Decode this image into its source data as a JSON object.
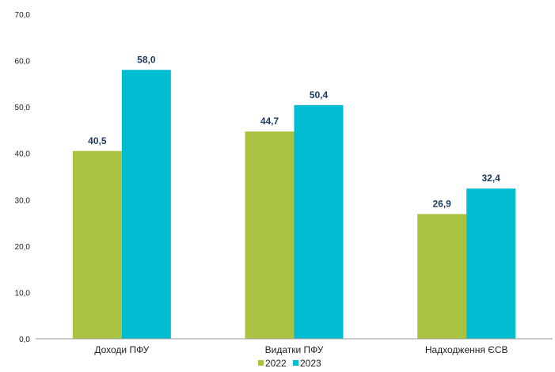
{
  "chart_data": {
    "type": "bar",
    "categories": [
      "Доходи ПФУ",
      "Видатки ПФУ",
      "Надходження ЄСВ"
    ],
    "series": [
      {
        "name": "2022",
        "color": "#a9c23f",
        "values": [
          40.5,
          44.7,
          26.9
        ],
        "labels": [
          "40,5",
          "44,7",
          "26,9"
        ]
      },
      {
        "name": "2023",
        "color": "#00bcd0",
        "values": [
          58.0,
          50.4,
          32.4
        ],
        "labels": [
          "58,0",
          "50,4",
          "32,4"
        ]
      }
    ],
    "ylim": [
      0,
      70
    ],
    "yticks": [
      0,
      10,
      20,
      30,
      40,
      50,
      60,
      70
    ],
    "ytick_labels": [
      "0,0",
      "10,0",
      "20,0",
      "30,0",
      "40,0",
      "50,0",
      "60,0",
      "70,0"
    ],
    "grid": false,
    "legend": "bottom"
  }
}
